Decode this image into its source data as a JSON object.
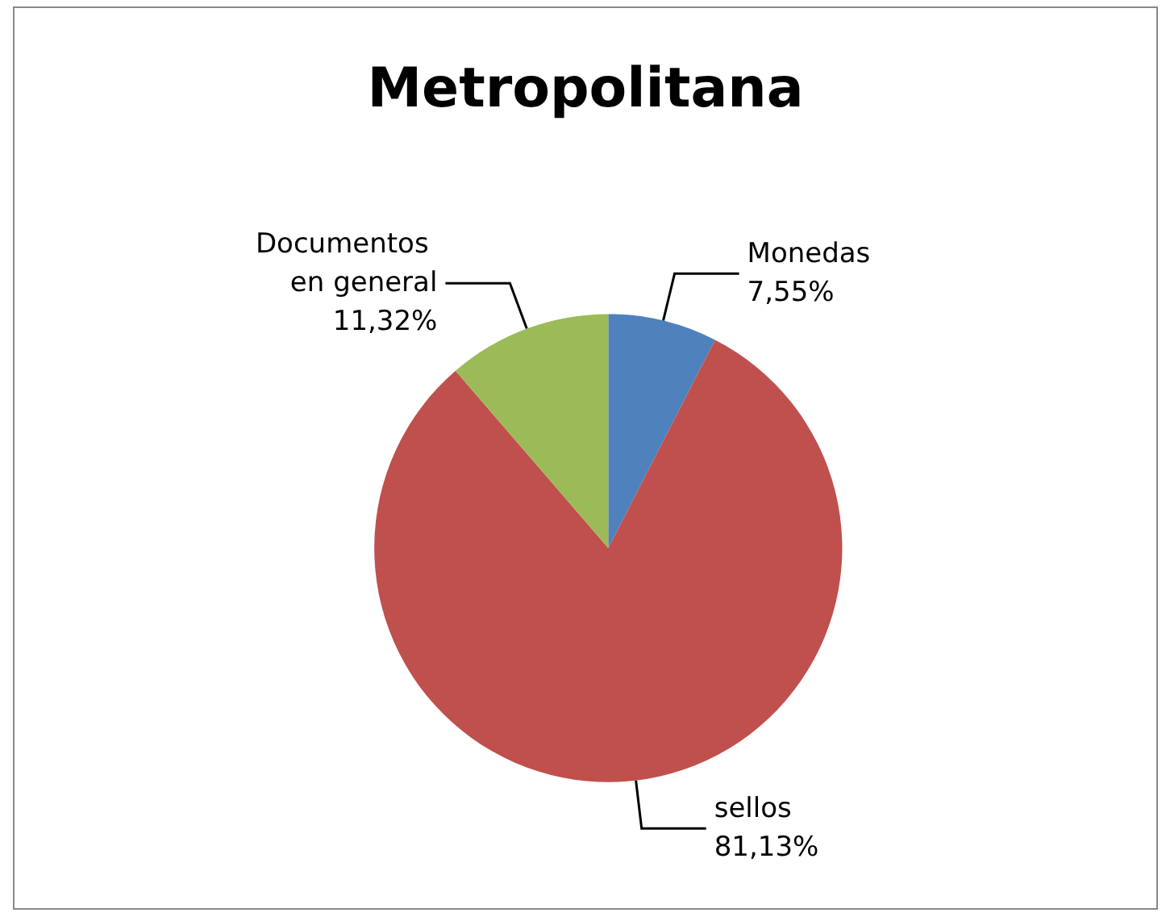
{
  "chart_data": {
    "type": "pie",
    "title": "Metropolitana",
    "categories": [
      "Monedas",
      "sellos",
      "Documentos en general"
    ],
    "values": [
      7.55,
      81.13,
      11.32
    ],
    "value_labels": [
      "7,55%",
      "81,13%",
      "11,32%"
    ],
    "colors": [
      "#4f81bd",
      "#c0504d",
      "#9bbb59"
    ],
    "legend": false
  }
}
